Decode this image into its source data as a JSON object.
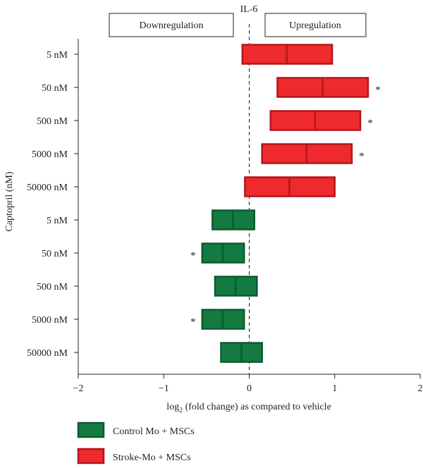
{
  "chart_data": {
    "type": "bar",
    "title": "IL-6",
    "ylabel": "Captopril (nM)",
    "xlabel_main": "log",
    "xlabel_sub": "2",
    "xlabel_rest": " (fold change) as compared to vehicle",
    "xlim": [
      -2,
      2
    ],
    "x_ticks": [
      "−2",
      "−1",
      "0",
      "1",
      "2"
    ],
    "regions": {
      "left": "Downregulation",
      "right": "Upregulation"
    },
    "categories": [
      "5 nM",
      "50 nM",
      "500 nM",
      "5000 nM",
      "50000 nM",
      "5 nM",
      "50 nM",
      "500 nM",
      "5000 nM",
      "50000 nM"
    ],
    "significance_marker": "*",
    "series": [
      {
        "name": "Stroke-Mo + MSCs",
        "color": "#ee2a2d",
        "stroke": "#b3151c",
        "rows": [
          {
            "category_index": 0,
            "low": -0.08,
            "mid": 0.44,
            "high": 0.97,
            "significant": false
          },
          {
            "category_index": 1,
            "low": 0.33,
            "mid": 0.86,
            "high": 1.39,
            "significant": true
          },
          {
            "category_index": 2,
            "low": 0.25,
            "mid": 0.77,
            "high": 1.3,
            "significant": true
          },
          {
            "category_index": 3,
            "low": 0.15,
            "mid": 0.67,
            "high": 1.2,
            "significant": true
          },
          {
            "category_index": 4,
            "low": -0.05,
            "mid": 0.47,
            "high": 1.0,
            "significant": false
          }
        ]
      },
      {
        "name": "Control Mo + MSCs",
        "color": "#137a42",
        "stroke": "#0c5a2f",
        "rows": [
          {
            "category_index": 5,
            "low": -0.43,
            "mid": -0.19,
            "high": 0.06,
            "significant": false
          },
          {
            "category_index": 6,
            "low": -0.55,
            "mid": -0.31,
            "high": -0.06,
            "significant": true
          },
          {
            "category_index": 7,
            "low": -0.4,
            "mid": -0.16,
            "high": 0.09,
            "significant": false
          },
          {
            "category_index": 8,
            "low": -0.55,
            "mid": -0.31,
            "high": -0.06,
            "significant": true
          },
          {
            "category_index": 9,
            "low": -0.33,
            "mid": -0.09,
            "high": 0.15,
            "significant": false
          }
        ]
      }
    ],
    "legend": [
      {
        "label": "Control Mo + MSCs",
        "color": "#137a42",
        "stroke": "#0c5a2f"
      },
      {
        "label": "Stroke-Mo + MSCs",
        "color": "#ee2a2d",
        "stroke": "#b3151c"
      }
    ],
    "legend_placement": "bottom-left",
    "zero_line": "dashed"
  }
}
